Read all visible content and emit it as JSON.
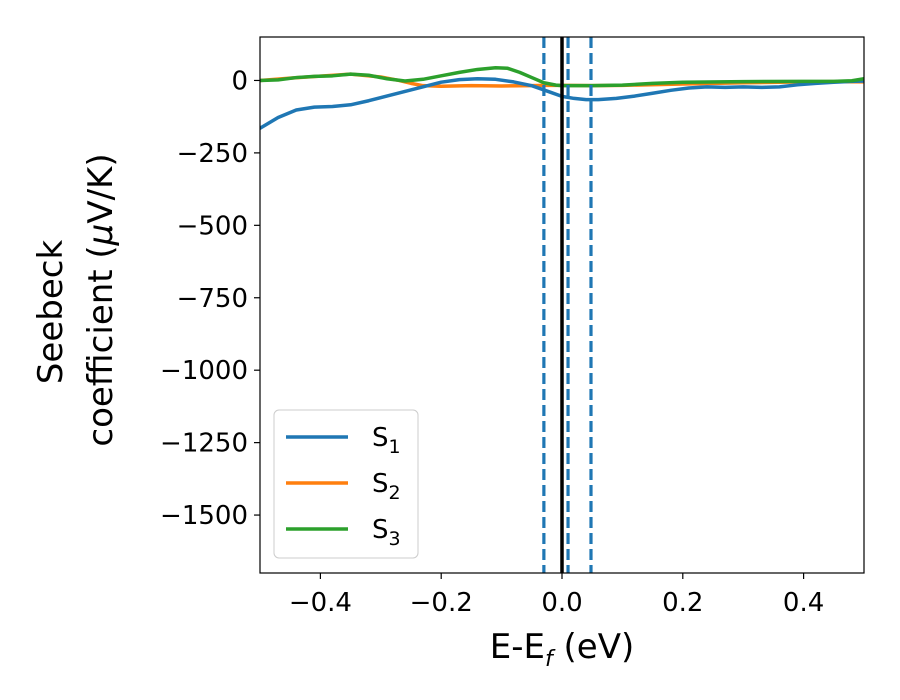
{
  "chart_data": {
    "type": "line",
    "title": "",
    "xlabel": {
      "main": "E-E",
      "sub": "f",
      "rest": " (eV)"
    },
    "ylabel": {
      "line1": "Seebeck",
      "line2_prefix": "coefficient  (",
      "line2_mu": "μ",
      "line2_suffix": "V/K)"
    },
    "xlim": [
      -0.5,
      0.5
    ],
    "ylim": [
      -1700,
      150
    ],
    "x_ticks": [
      -0.4,
      -0.2,
      0.0,
      0.2,
      0.4
    ],
    "x_tick_labels": [
      "−0.4",
      "−0.2",
      "0.0",
      "0.2",
      "0.4"
    ],
    "y_ticks": [
      0,
      -250,
      -500,
      -750,
      -1000,
      -1250,
      -1500
    ],
    "y_tick_labels": [
      "0",
      "−250",
      "−500",
      "−750",
      "−1000",
      "−1250",
      "−1500"
    ],
    "legend_position": "lower-left",
    "series": [
      {
        "name": "S",
        "subscript": "1",
        "color": "#1f77b4",
        "x": [
          -0.5,
          -0.47,
          -0.44,
          -0.41,
          -0.38,
          -0.35,
          -0.32,
          -0.29,
          -0.26,
          -0.23,
          -0.2,
          -0.17,
          -0.14,
          -0.11,
          -0.08,
          -0.05,
          -0.02,
          0.0,
          0.02,
          0.04,
          0.06,
          0.09,
          0.12,
          0.15,
          0.18,
          0.21,
          0.24,
          0.27,
          0.3,
          0.33,
          0.36,
          0.39,
          0.42,
          0.45,
          0.48,
          0.5
        ],
        "values": [
          -165,
          -128,
          -102,
          -92,
          -90,
          -84,
          -70,
          -54,
          -38,
          -22,
          -6,
          3,
          6,
          4,
          -5,
          -18,
          -40,
          -55,
          -62,
          -66,
          -66,
          -62,
          -54,
          -44,
          -34,
          -26,
          -22,
          -24,
          -22,
          -24,
          -22,
          -15,
          -10,
          -6,
          -3,
          -2
        ]
      },
      {
        "name": "S",
        "subscript": "2",
        "color": "#ff7f0e",
        "x": [
          -0.5,
          -0.45,
          -0.4,
          -0.35,
          -0.3,
          -0.27,
          -0.25,
          -0.23,
          -0.2,
          -0.15,
          -0.1,
          -0.05,
          -0.03,
          0.0,
          0.05,
          0.1,
          0.2,
          0.3,
          0.4,
          0.45,
          0.5
        ],
        "values": [
          0,
          8,
          15,
          22,
          12,
          0,
          -10,
          -18,
          -20,
          -18,
          -19,
          -18,
          -17,
          -17,
          -18,
          -17,
          -12,
          -8,
          -5,
          -4,
          -5
        ]
      },
      {
        "name": "S",
        "subscript": "3",
        "color": "#2ca02c",
        "x": [
          -0.5,
          -0.47,
          -0.44,
          -0.41,
          -0.38,
          -0.35,
          -0.32,
          -0.29,
          -0.26,
          -0.23,
          -0.2,
          -0.17,
          -0.14,
          -0.11,
          -0.09,
          -0.07,
          -0.05,
          -0.03,
          -0.01,
          0.0,
          0.05,
          0.1,
          0.15,
          0.2,
          0.3,
          0.4,
          0.45,
          0.48,
          0.5
        ],
        "values": [
          0,
          2,
          10,
          14,
          16,
          22,
          18,
          6,
          -2,
          4,
          16,
          28,
          38,
          44,
          42,
          28,
          10,
          -8,
          -16,
          -18,
          -18,
          -16,
          -10,
          -6,
          -4,
          -3,
          -3,
          -1,
          6
        ]
      }
    ],
    "vertical_lines": [
      {
        "x": 0.0,
        "style": "solid",
        "color": "#000000"
      },
      {
        "x": -0.03,
        "style": "dashed",
        "color": "#1f77b4"
      },
      {
        "x": 0.01,
        "style": "dashed",
        "color": "#1f77b4"
      },
      {
        "x": 0.048,
        "style": "dashed",
        "color": "#1f77b4"
      }
    ]
  }
}
